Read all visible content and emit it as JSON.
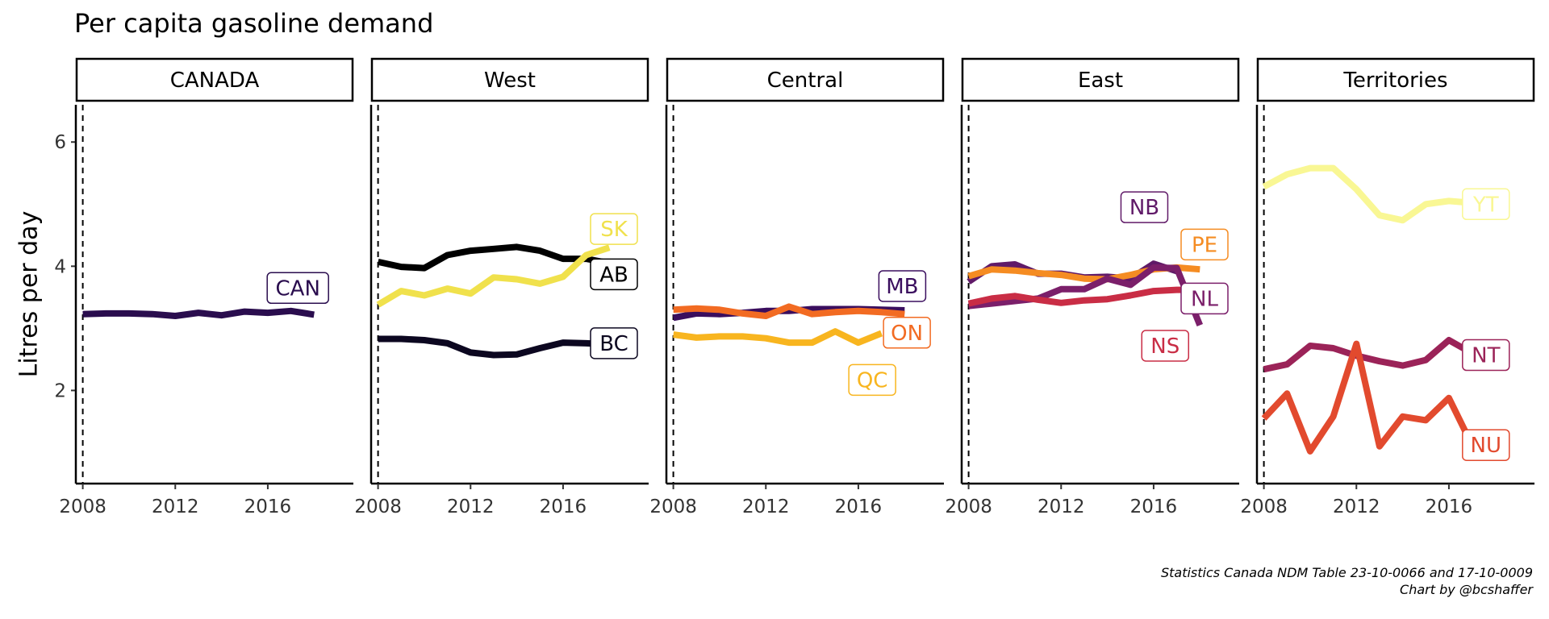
{
  "chart_data": {
    "type": "line",
    "title": "Per capita gasoline demand",
    "ylabel": "Litres per day",
    "xlabel": "",
    "xlim": [
      2007.7,
      2019.7
    ],
    "ylim": [
      0.5,
      6.6
    ],
    "x_ticks": [
      2008,
      2012,
      2016
    ],
    "y_ticks": [
      2,
      4,
      6
    ],
    "reference_line": {
      "x": 2008,
      "style": "dashed"
    },
    "grid": false,
    "caption": [
      "Statistics Canada NDM Table 23-10-0066 and 17-10-0009",
      "Chart by @bcshaffer"
    ],
    "x": [
      2008,
      2009,
      2010,
      2011,
      2012,
      2013,
      2014,
      2015,
      2016,
      2017,
      2018
    ],
    "panels": [
      {
        "name": "CANADA",
        "series": [
          {
            "name": "CAN",
            "color": "#2a0d4e",
            "values": [
              3.23,
              3.24,
              3.24,
              3.23,
              3.2,
              3.25,
              3.21,
              3.27,
              3.25,
              3.28,
              3.22
            ],
            "label": {
              "x": 2017.3,
              "y": 3.65
            }
          }
        ]
      },
      {
        "name": "West",
        "series": [
          {
            "name": "AB",
            "color": "#000000",
            "values": [
              4.07,
              3.99,
              3.97,
              4.18,
              4.25,
              4.28,
              4.31,
              4.25,
              4.12,
              4.12,
              4.05
            ],
            "label": {
              "x": 2018.2,
              "y": 3.87
            }
          },
          {
            "name": "SK",
            "color": "#f0e14c",
            "values": [
              3.38,
              3.6,
              3.53,
              3.64,
              3.56,
              3.82,
              3.79,
              3.72,
              3.83,
              4.18,
              4.3
            ],
            "label": {
              "x": 2018.2,
              "y": 4.6
            }
          },
          {
            "name": "BC",
            "color": "#0c0720",
            "values": [
              2.83,
              2.83,
              2.81,
              2.76,
              2.61,
              2.57,
              2.58,
              2.68,
              2.77,
              2.76,
              2.74
            ],
            "label": {
              "x": 2018.2,
              "y": 2.76
            }
          }
        ]
      },
      {
        "name": "Central",
        "series": [
          {
            "name": "MB",
            "color": "#3a0e5e",
            "values": [
              3.17,
              3.24,
              3.23,
              3.25,
              3.28,
              3.28,
              3.31,
              3.31,
              3.31,
              3.3,
              3.29
            ],
            "label": {
              "x": 2017.9,
              "y": 3.68
            }
          },
          {
            "name": "ON",
            "color": "#f26b22",
            "values": [
              3.3,
              3.32,
              3.3,
              3.24,
              3.2,
              3.35,
              3.23,
              3.26,
              3.28,
              3.26,
              3.23
            ],
            "label": {
              "x": 2018.1,
              "y": 2.93
            }
          },
          {
            "name": "QC",
            "color": "#f8b51f",
            "values": [
              2.9,
              2.85,
              2.87,
              2.87,
              2.84,
              2.77,
              2.77,
              2.95,
              2.77,
              2.92,
              null
            ],
            "label": {
              "x": 2016.6,
              "y": 2.17
            }
          }
        ]
      },
      {
        "name": "East",
        "series": [
          {
            "name": "NB",
            "color": "#601a68",
            "values": [
              3.75,
              4.0,
              4.03,
              3.88,
              3.88,
              3.82,
              3.83,
              3.8,
              4.04,
              3.92,
              null
            ],
            "label": {
              "x": 2015.6,
              "y": 4.95
            }
          },
          {
            "name": "PE",
            "color": "#f58c22",
            "values": [
              3.84,
              3.95,
              3.93,
              3.89,
              3.86,
              3.8,
              3.79,
              3.86,
              3.95,
              3.98,
              3.95
            ],
            "label": {
              "x": 2018.2,
              "y": 4.35
            }
          },
          {
            "name": "NL",
            "color": "#7b1f6a",
            "values": [
              3.36,
              3.4,
              3.44,
              3.48,
              3.63,
              3.63,
              3.8,
              3.7,
              3.98,
              3.97,
              3.05
            ],
            "label": {
              "x": 2018.2,
              "y": 3.48
            }
          },
          {
            "name": "NS",
            "color": "#c92d45",
            "values": [
              3.4,
              3.48,
              3.52,
              3.46,
              3.41,
              3.45,
              3.47,
              3.53,
              3.6,
              3.62,
              3.62
            ],
            "label": {
              "x": 2016.5,
              "y": 2.72
            }
          }
        ]
      },
      {
        "name": "Territories",
        "series": [
          {
            "name": "YT",
            "color": "#f9f794",
            "values": [
              5.28,
              5.48,
              5.58,
              5.58,
              5.24,
              4.82,
              4.74,
              5.0,
              5.05,
              5.02,
              null
            ],
            "label": {
              "x": 2017.6,
              "y": 5.0
            }
          },
          {
            "name": "NT",
            "color": "#9b2358",
            "values": [
              2.34,
              2.42,
              2.72,
              2.68,
              2.56,
              2.47,
              2.4,
              2.49,
              2.81,
              2.6,
              null
            ],
            "label": {
              "x": 2017.6,
              "y": 2.57
            }
          },
          {
            "name": "NU",
            "color": "#e24a2e",
            "values": [
              1.55,
              1.95,
              1.02,
              1.58,
              2.75,
              1.1,
              1.58,
              1.52,
              1.88,
              1.12,
              null
            ],
            "label": {
              "x": 2017.6,
              "y": 1.12
            }
          }
        ]
      }
    ]
  }
}
